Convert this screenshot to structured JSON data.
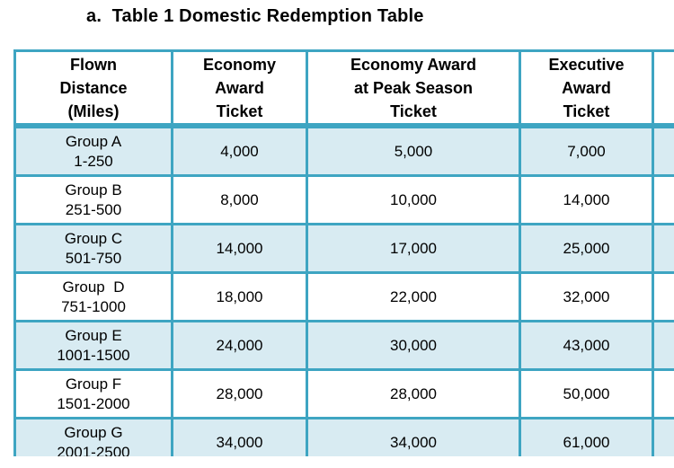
{
  "title": "a.  Table 1 Domestic Redemption Table",
  "colors": {
    "border_teal": "#3EA5C2",
    "row_fill_blue": "#D8EBF2",
    "header_background": "#FFFFFF",
    "text": "#000000"
  },
  "table": {
    "headers": [
      "Flown\nDistance\n(Miles)",
      "Economy\nAward\nTicket",
      "Economy Award\nat Peak Season\nTicket",
      "Executive\nAward\nTicket",
      ""
    ],
    "rows": [
      {
        "group": "Group A\n1-250",
        "economy": "4,000",
        "peak": "5,000",
        "executive": "7,000",
        "extra": ""
      },
      {
        "group": "Group B\n251-500",
        "economy": "8,000",
        "peak": "10,000",
        "executive": "14,000",
        "extra": ""
      },
      {
        "group": "Group C\n501-750",
        "economy": "14,000",
        "peak": "17,000",
        "executive": "25,000",
        "extra": ""
      },
      {
        "group": "Group  D\n751-1000",
        "economy": "18,000",
        "peak": "22,000",
        "executive": "32,000",
        "extra": ""
      },
      {
        "group": "Group E\n1001-1500",
        "economy": "24,000",
        "peak": "30,000",
        "executive": "43,000",
        "extra": ""
      },
      {
        "group": "Group F\n1501-2000",
        "economy": "28,000",
        "peak": "28,000",
        "executive": "50,000",
        "extra": ""
      },
      {
        "group": "Group G\n2001-2500",
        "economy": "34,000",
        "peak": "34,000",
        "executive": "61,000",
        "extra": ""
      }
    ]
  }
}
